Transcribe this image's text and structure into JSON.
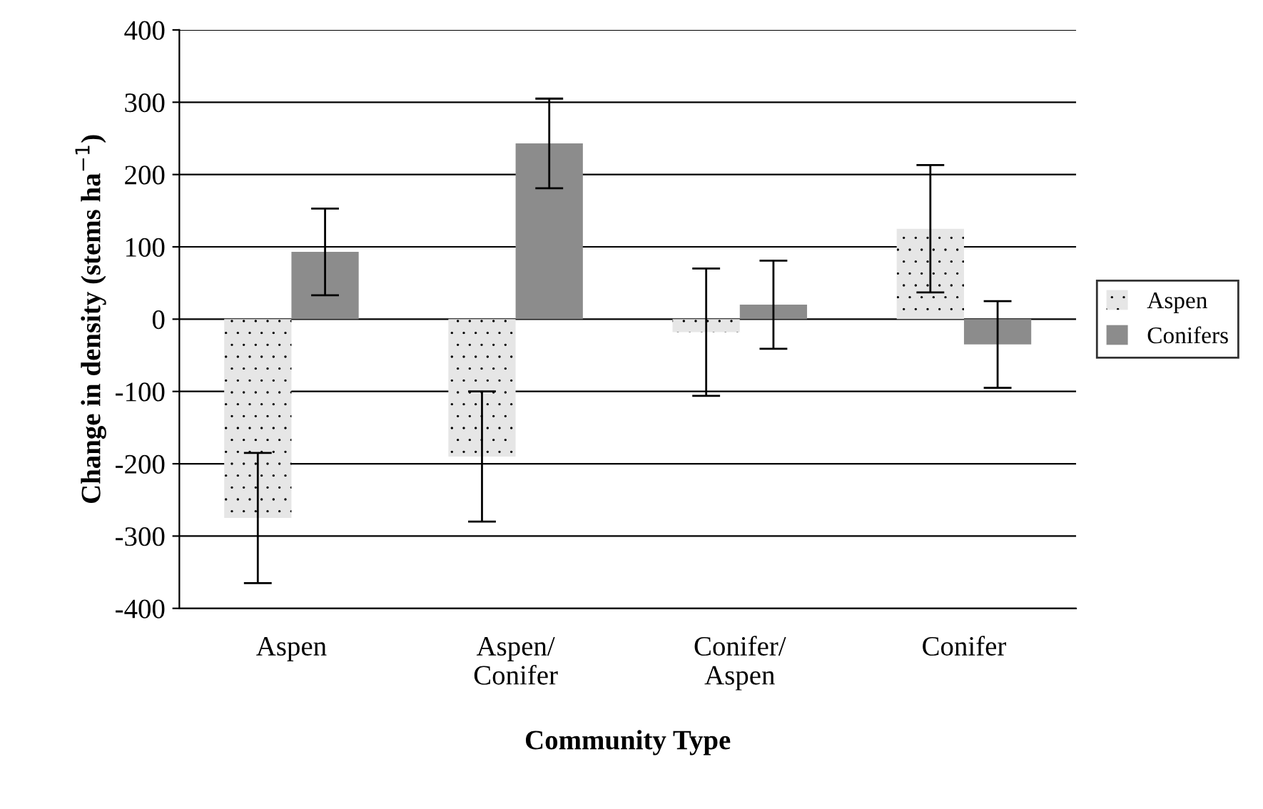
{
  "chart_data": {
    "type": "bar",
    "xlabel": "Community Type",
    "ylabel": "Change in density (stems ha$^{−1}$)",
    "categories": [
      "Aspen",
      "Aspen/\nConifer",
      "Conifer/\nAspen",
      "Conifer"
    ],
    "series": [
      {
        "name": "Aspen",
        "color": "#e6e6e6",
        "values": [
          -275,
          -190,
          -18,
          125
        ],
        "errors": [
          90,
          90,
          88,
          88
        ]
      },
      {
        "name": "Conifers",
        "color": "#8c8c8c",
        "values": [
          93,
          243,
          20,
          -35
        ],
        "errors": [
          60,
          62,
          61,
          60
        ]
      }
    ],
    "ylim": [
      -400,
      400
    ],
    "yticks": [
      -400,
      -300,
      -200,
      -100,
      0,
      100,
      200,
      300,
      400
    ],
    "grid": "y",
    "legend": "right"
  }
}
